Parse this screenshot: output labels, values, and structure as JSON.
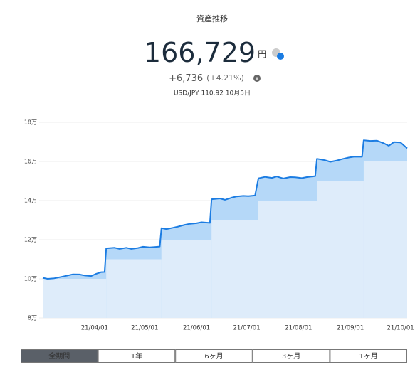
{
  "header": {
    "title": "資産推移",
    "total": "166,729",
    "unit": "円",
    "change": "+6,736",
    "change_pct": "(+4.21%)",
    "fx": "USD/JPY 110.92 10月5日"
  },
  "chart_data": {
    "type": "area",
    "xlim": [
      "2021-03-01",
      "2021-10-05"
    ],
    "ylim": [
      80000,
      180000
    ],
    "yticks": [
      {
        "value": 80000,
        "label": "8万"
      },
      {
        "value": 100000,
        "label": "10万"
      },
      {
        "value": 120000,
        "label": "12万"
      },
      {
        "value": 140000,
        "label": "14万"
      },
      {
        "value": 160000,
        "label": "16万"
      },
      {
        "value": 180000,
        "label": "18万"
      }
    ],
    "xticks": [
      {
        "value": "2021-04-01",
        "label": "21/04/01"
      },
      {
        "value": "2021-05-01",
        "label": "21/05/01"
      },
      {
        "value": "2021-06-01",
        "label": "21/06/01"
      },
      {
        "value": "2021-07-01",
        "label": "21/07/01"
      },
      {
        "value": "2021-08-01",
        "label": "21/08/01"
      },
      {
        "value": "2021-09-01",
        "label": "21/09/01"
      },
      {
        "value": "2021-10-01",
        "label": "21/10/01"
      }
    ],
    "grid": true,
    "series": [
      {
        "color": "#1b7ce2",
        "fill": "#b5d8f8",
        "x": [
          "2021-03-01",
          "2021-03-04",
          "2021-03-08",
          "2021-03-12",
          "2021-03-16",
          "2021-03-19",
          "2021-03-23",
          "2021-03-26",
          "2021-03-30",
          "2021-04-02",
          "2021-04-05",
          "2021-04-07",
          "2021-04-08",
          "2021-04-13",
          "2021-04-16",
          "2021-04-20",
          "2021-04-23",
          "2021-04-27",
          "2021-04-30",
          "2021-05-04",
          "2021-05-07",
          "2021-05-10",
          "2021-05-11",
          "2021-05-14",
          "2021-05-18",
          "2021-05-21",
          "2021-05-25",
          "2021-05-28",
          "2021-06-01",
          "2021-06-04",
          "2021-06-09",
          "2021-06-10",
          "2021-06-15",
          "2021-06-18",
          "2021-06-22",
          "2021-06-25",
          "2021-06-29",
          "2021-07-02",
          "2021-07-06",
          "2021-07-08",
          "2021-07-12",
          "2021-07-16",
          "2021-07-19",
          "2021-07-23",
          "2021-07-27",
          "2021-07-30",
          "2021-08-03",
          "2021-08-06",
          "2021-08-11",
          "2021-08-12",
          "2021-08-17",
          "2021-08-20",
          "2021-08-24",
          "2021-08-27",
          "2021-08-31",
          "2021-09-03",
          "2021-09-08",
          "2021-09-09",
          "2021-09-13",
          "2021-09-17",
          "2021-09-21",
          "2021-09-24",
          "2021-09-27",
          "2021-10-01",
          "2021-10-05"
        ],
        "values": [
          100500,
          100000,
          100300,
          101000,
          101700,
          102300,
          102200,
          101700,
          101400,
          102600,
          103400,
          103500,
          115600,
          115900,
          115300,
          115900,
          115300,
          115800,
          116400,
          116100,
          116300,
          116500,
          125900,
          125400,
          126100,
          126700,
          127600,
          128100,
          128400,
          128900,
          128600,
          140700,
          141100,
          140400,
          141500,
          142100,
          142400,
          142300,
          142600,
          151400,
          152100,
          151600,
          152300,
          151300,
          152000,
          151900,
          151500,
          152000,
          152500,
          161400,
          160600,
          159800,
          160500,
          161200,
          162000,
          162400,
          162400,
          170800,
          170500,
          170600,
          169300,
          168000,
          169900,
          169700,
          166729
        ]
      },
      {
        "fill": "#deecfa",
        "step": true,
        "x": [
          "2021-03-01",
          "2021-04-08",
          "2021-05-11",
          "2021-06-10",
          "2021-07-08",
          "2021-08-12",
          "2021-09-09"
        ],
        "values": [
          100000,
          110000,
          120000,
          130000,
          140000,
          150000,
          160000
        ]
      }
    ]
  },
  "tabs": {
    "items": [
      "全期間",
      "1年",
      "6ヶ月",
      "3ヶ月",
      "1ヶ月"
    ],
    "selected": 0
  }
}
